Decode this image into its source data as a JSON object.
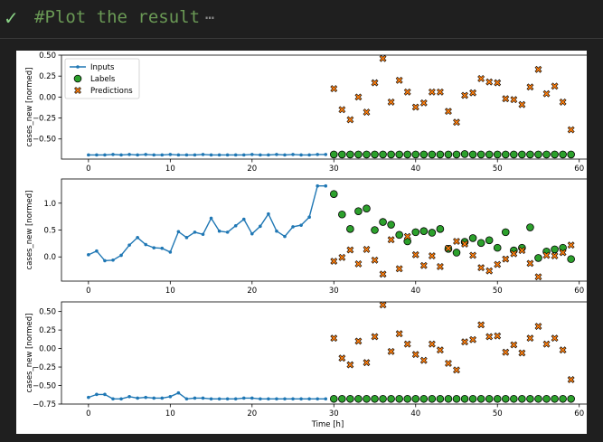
{
  "cell": {
    "title": "#Plot the result",
    "ellipsis": "⋯"
  },
  "chart_data": [
    {
      "type": "scatter",
      "ylabel": "cases_new [normed]",
      "xlabel": "",
      "xlim": [
        -3.3,
        61.8
      ],
      "ylim": [
        -0.74,
        0.5
      ],
      "xticks": [
        0,
        10,
        20,
        30,
        40,
        50,
        60
      ],
      "yticks": [
        0.5,
        0.25,
        0.0,
        -0.25,
        -0.5
      ],
      "ytick_labels": [
        "0.50",
        "0.25",
        "0.00",
        "−0.25",
        "−0.50"
      ],
      "legend": {
        "placement": "top-left",
        "entries": [
          "Inputs",
          "Labels",
          "Predictions"
        ]
      },
      "inputs": {
        "x": [
          0,
          1,
          2,
          3,
          4,
          5,
          6,
          7,
          8,
          9,
          10,
          11,
          12,
          13,
          14,
          15,
          16,
          17,
          18,
          19,
          20,
          21,
          22,
          23,
          24,
          25,
          26,
          27,
          28,
          29
        ],
        "y": [
          -0.69,
          -0.69,
          -0.69,
          -0.685,
          -0.69,
          -0.685,
          -0.69,
          -0.685,
          -0.69,
          -0.69,
          -0.685,
          -0.69,
          -0.69,
          -0.69,
          -0.685,
          -0.69,
          -0.69,
          -0.69,
          -0.69,
          -0.69,
          -0.685,
          -0.69,
          -0.69,
          -0.685,
          -0.69,
          -0.685,
          -0.69,
          -0.69,
          -0.685,
          -0.685
        ]
      },
      "labels": {
        "x": [
          30,
          31,
          32,
          33,
          34,
          35,
          36,
          37,
          38,
          39,
          40,
          41,
          42,
          43,
          44,
          45,
          46,
          47,
          48,
          49,
          50,
          51,
          52,
          53,
          54,
          55,
          56,
          57,
          58,
          59
        ],
        "y": [
          -0.685,
          -0.685,
          -0.685,
          -0.685,
          -0.685,
          -0.685,
          -0.685,
          -0.685,
          -0.685,
          -0.685,
          -0.685,
          -0.685,
          -0.685,
          -0.685,
          -0.685,
          -0.685,
          -0.68,
          -0.685,
          -0.685,
          -0.685,
          -0.685,
          -0.685,
          -0.685,
          -0.685,
          -0.685,
          -0.685,
          -0.685,
          -0.685,
          -0.685,
          -0.685
        ]
      },
      "predictions": {
        "x": [
          30,
          31,
          32,
          33,
          34,
          35,
          36,
          37,
          38,
          39,
          40,
          41,
          42,
          43,
          44,
          45,
          46,
          47,
          48,
          49,
          50,
          51,
          52,
          53,
          54,
          55,
          56,
          57,
          58,
          59
        ],
        "y": [
          0.1,
          -0.15,
          -0.27,
          0.0,
          -0.18,
          0.17,
          0.46,
          -0.06,
          0.2,
          0.06,
          -0.12,
          -0.07,
          0.06,
          0.06,
          -0.17,
          -0.3,
          0.02,
          0.05,
          0.22,
          0.18,
          0.17,
          -0.02,
          -0.03,
          -0.09,
          0.12,
          0.33,
          0.04,
          0.13,
          -0.06,
          -0.39
        ]
      }
    },
    {
      "type": "scatter",
      "ylabel": "cases_new [normed]",
      "xlabel": "",
      "xlim": [
        -3.3,
        61.8
      ],
      "ylim": [
        -0.45,
        1.45
      ],
      "xticks": [
        0,
        10,
        20,
        30,
        40,
        50,
        60
      ],
      "yticks": [
        1.0,
        0.5,
        0.0
      ],
      "ytick_labels": [
        "1.0",
        "0.5",
        "0.0"
      ],
      "inputs": {
        "x": [
          0,
          1,
          2,
          3,
          4,
          5,
          6,
          7,
          8,
          9,
          10,
          11,
          12,
          13,
          14,
          15,
          16,
          17,
          18,
          19,
          20,
          21,
          22,
          23,
          24,
          25,
          26,
          27,
          28,
          29
        ],
        "y": [
          0.04,
          0.11,
          -0.07,
          -0.06,
          0.03,
          0.22,
          0.36,
          0.23,
          0.17,
          0.16,
          0.09,
          0.47,
          0.36,
          0.46,
          0.42,
          0.72,
          0.48,
          0.46,
          0.58,
          0.7,
          0.43,
          0.57,
          0.8,
          0.48,
          0.38,
          0.56,
          0.59,
          0.74,
          1.32,
          1.32
        ]
      },
      "labels": {
        "x": [
          30,
          31,
          32,
          33,
          34,
          35,
          36,
          37,
          38,
          39,
          40,
          41,
          42,
          43,
          44,
          45,
          46,
          47,
          48,
          49,
          50,
          51,
          52,
          53,
          54,
          55,
          56,
          57,
          58,
          59
        ],
        "y": [
          1.17,
          0.79,
          0.52,
          0.85,
          0.9,
          0.5,
          0.65,
          0.6,
          0.41,
          0.29,
          0.46,
          0.48,
          0.45,
          0.52,
          0.15,
          0.08,
          0.28,
          0.35,
          0.26,
          0.31,
          0.17,
          0.46,
          0.12,
          0.17,
          0.55,
          -0.02,
          0.1,
          0.14,
          0.17,
          -0.04
        ]
      },
      "predictions": {
        "x": [
          30,
          31,
          32,
          33,
          34,
          35,
          36,
          37,
          38,
          39,
          40,
          41,
          42,
          43,
          44,
          45,
          46,
          47,
          48,
          49,
          50,
          51,
          52,
          53,
          54,
          55,
          56,
          57,
          58,
          59
        ],
        "y": [
          -0.08,
          -0.01,
          0.13,
          -0.13,
          0.14,
          -0.06,
          -0.32,
          0.32,
          -0.22,
          0.38,
          0.04,
          -0.16,
          0.02,
          -0.18,
          0.16,
          0.29,
          0.24,
          0.03,
          -0.2,
          -0.26,
          -0.14,
          -0.04,
          0.06,
          0.12,
          -0.12,
          -0.37,
          0.03,
          0.02,
          0.08,
          0.22
        ]
      }
    },
    {
      "type": "scatter",
      "ylabel": "cases_new [normed]",
      "xlabel": "Time [h]",
      "xlim": [
        -3.3,
        61.8
      ],
      "ylim": [
        -0.75,
        0.63
      ],
      "xticks": [
        0,
        10,
        20,
        30,
        40,
        50,
        60
      ],
      "yticks": [
        0.5,
        0.25,
        0.0,
        -0.25,
        -0.5,
        -0.75
      ],
      "ytick_labels": [
        "0.50",
        "0.25",
        "0.00",
        "−0.25",
        "−0.50",
        "−0.75"
      ],
      "inputs": {
        "x": [
          0,
          1,
          2,
          3,
          4,
          5,
          6,
          7,
          8,
          9,
          10,
          11,
          12,
          13,
          14,
          15,
          16,
          17,
          18,
          19,
          20,
          21,
          22,
          23,
          24,
          25,
          26,
          27,
          28,
          29
        ],
        "y": [
          -0.66,
          -0.62,
          -0.62,
          -0.68,
          -0.68,
          -0.65,
          -0.67,
          -0.66,
          -0.67,
          -0.67,
          -0.65,
          -0.6,
          -0.68,
          -0.67,
          -0.67,
          -0.68,
          -0.68,
          -0.68,
          -0.68,
          -0.67,
          -0.67,
          -0.68,
          -0.68,
          -0.68,
          -0.68,
          -0.68,
          -0.68,
          -0.68,
          -0.68,
          -0.68
        ]
      },
      "labels": {
        "x": [
          30,
          31,
          32,
          33,
          34,
          35,
          36,
          37,
          38,
          39,
          40,
          41,
          42,
          43,
          44,
          45,
          46,
          47,
          48,
          49,
          50,
          51,
          52,
          53,
          54,
          55,
          56,
          57,
          58,
          59
        ],
        "y": [
          -0.68,
          -0.68,
          -0.68,
          -0.68,
          -0.68,
          -0.68,
          -0.68,
          -0.68,
          -0.68,
          -0.68,
          -0.68,
          -0.68,
          -0.68,
          -0.68,
          -0.68,
          -0.68,
          -0.68,
          -0.68,
          -0.68,
          -0.68,
          -0.68,
          -0.68,
          -0.68,
          -0.68,
          -0.68,
          -0.68,
          -0.68,
          -0.68,
          -0.68,
          -0.68
        ]
      },
      "predictions": {
        "x": [
          30,
          31,
          32,
          33,
          34,
          35,
          36,
          37,
          38,
          39,
          40,
          41,
          42,
          43,
          44,
          45,
          46,
          47,
          48,
          49,
          50,
          51,
          52,
          53,
          54,
          55,
          56,
          57,
          58,
          59
        ],
        "y": [
          0.14,
          -0.13,
          -0.22,
          0.1,
          -0.19,
          0.16,
          0.59,
          -0.04,
          0.2,
          0.06,
          -0.08,
          -0.16,
          0.06,
          -0.02,
          -0.2,
          -0.29,
          0.09,
          0.12,
          0.32,
          0.16,
          0.17,
          -0.05,
          0.05,
          -0.06,
          0.14,
          0.3,
          0.06,
          0.14,
          -0.02,
          -0.42
        ]
      }
    }
  ],
  "colors": {
    "inputs": "#1f77b4",
    "labels": "#2ca02c",
    "predictions": "#ff7f0e",
    "check": "#89d185",
    "comment": "#6a9955"
  }
}
